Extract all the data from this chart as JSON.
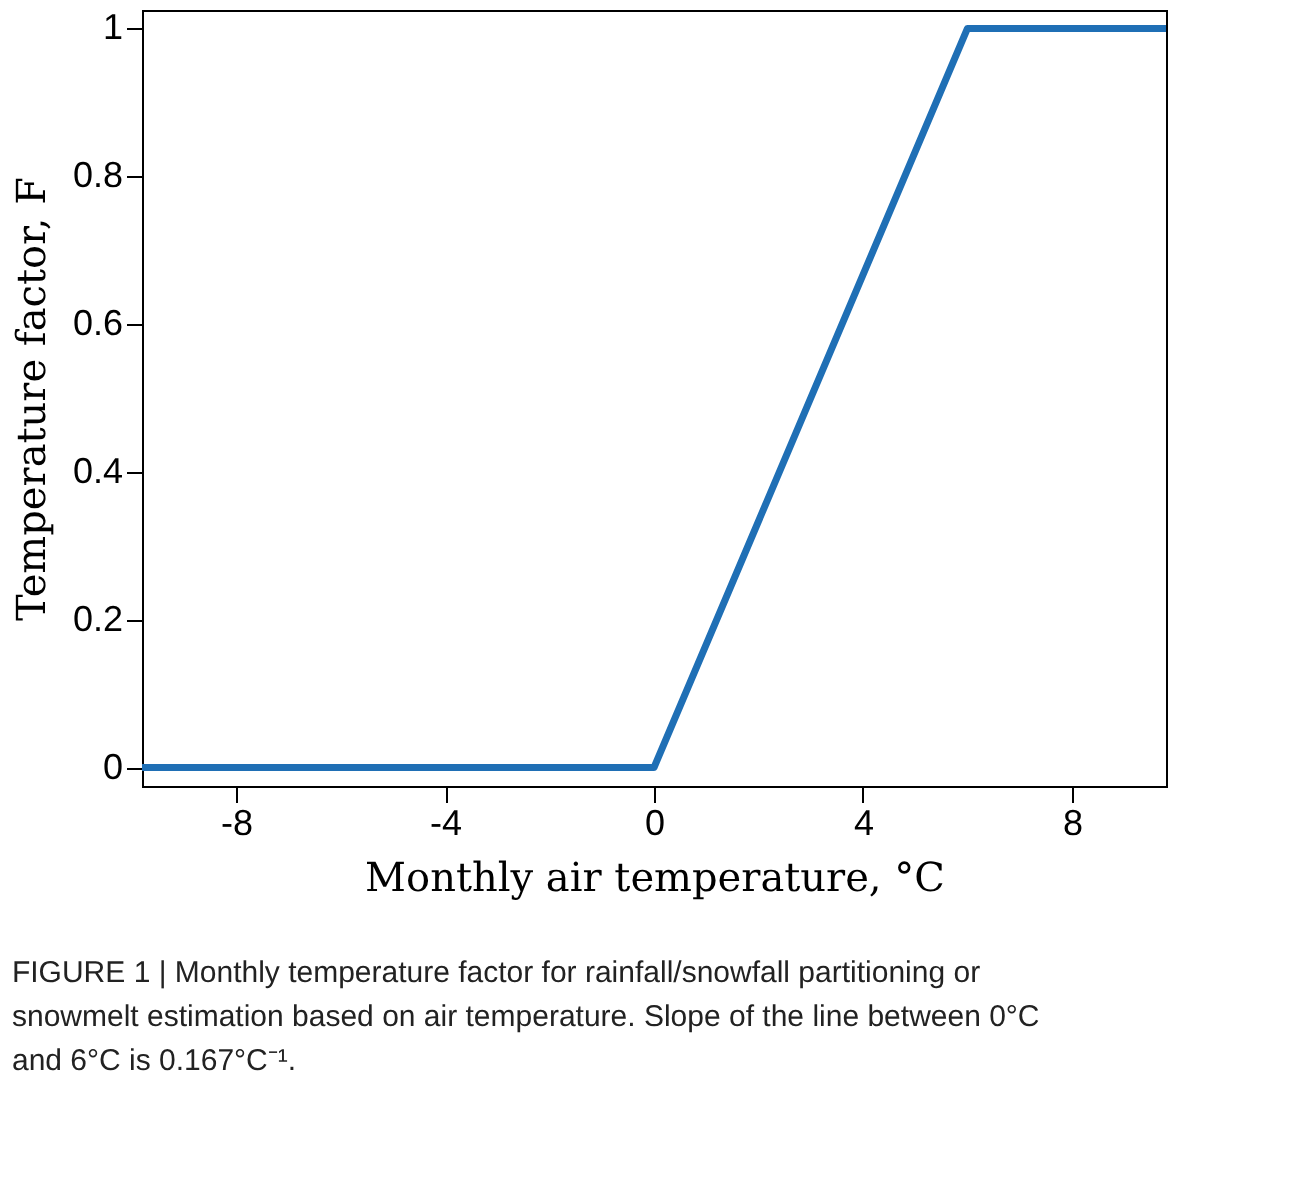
{
  "chart_data": {
    "type": "line",
    "xlabel": "Monthly air temperature, °C",
    "ylabel": "Temperature factor, F",
    "x": [
      -9.8,
      0,
      6,
      9.8
    ],
    "series": [
      {
        "color": "#1f6fb5",
        "values": [
          0,
          0,
          1,
          1
        ]
      }
    ],
    "xlim": [
      -9.8,
      9.8
    ],
    "xticks": [
      -8,
      -4,
      0,
      4,
      8
    ],
    "ylim": [
      -0.025,
      1.025
    ],
    "yticks": [
      0,
      0.2,
      0.4,
      0.6,
      0.8,
      1
    ],
    "grid": false,
    "legend": false,
    "marker": "none",
    "line_style": "solid",
    "annotations": [
      "FIGURE 1 | Monthly temperature factor for rainfall/snowfall partitioning or snowmelt estimation based on air temperature. Slope of the line between 0°C and 6°C is 0.167°C⁻¹."
    ]
  }
}
